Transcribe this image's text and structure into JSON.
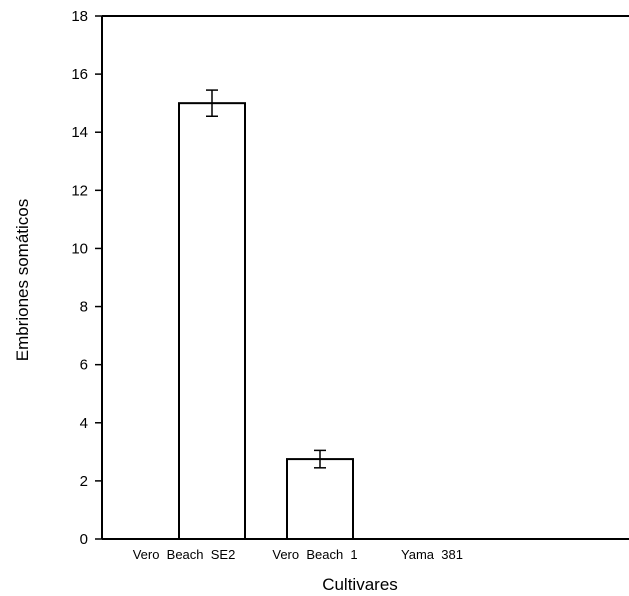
{
  "chart_data": {
    "type": "bar",
    "title": "",
    "xlabel": "Cultivares",
    "ylabel": "Embriones somáticos",
    "categories": [
      "Vero  Beach  SE2",
      "Vero  Beach  1",
      "Yama  381"
    ],
    "values": [
      15.0,
      2.75,
      0
    ],
    "errors": [
      0.45,
      0.3,
      0
    ],
    "ylim": [
      0,
      18
    ],
    "yticks": [
      "0",
      "2",
      "4",
      "6",
      "8",
      "10",
      "12",
      "14",
      "16",
      "18"
    ],
    "grid": false,
    "colors": {
      "bar_fill": "#ffffff",
      "bar_stroke": "#000000",
      "axis": "#000000"
    }
  }
}
